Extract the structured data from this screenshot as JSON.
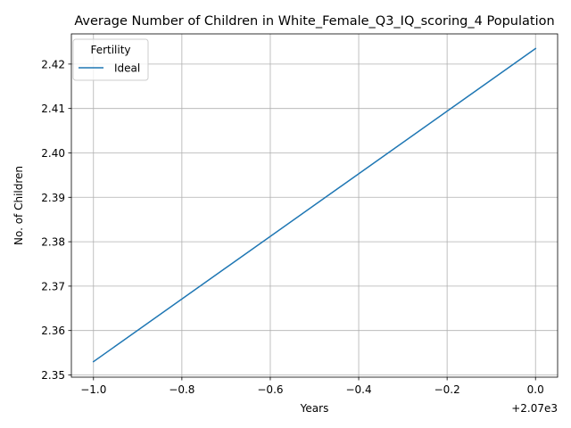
{
  "chart_data": {
    "type": "line",
    "title": "Average Number of Children in White_Female_Q3_IQ_scoring_4 Population",
    "xlabel": "Years",
    "ylabel": "No. of Children",
    "x_offset_label": "+2.07e3",
    "x_ticks": [
      "−1.0",
      "−0.8",
      "−0.6",
      "−0.4",
      "−0.2",
      "0.0"
    ],
    "y_ticks": [
      "2.35",
      "2.36",
      "2.37",
      "2.38",
      "2.39",
      "2.40",
      "2.41",
      "2.42"
    ],
    "xlim": [
      -1.05,
      0.05
    ],
    "ylim": [
      2.3495,
      2.4268
    ],
    "grid": true,
    "legend": {
      "title": "Fertility",
      "placement": "top-left"
    },
    "series": [
      {
        "name": "Ideal",
        "color": "#1f77b4",
        "x": [
          -1.0,
          0.0
        ],
        "y": [
          2.353,
          2.4235
        ]
      }
    ]
  }
}
